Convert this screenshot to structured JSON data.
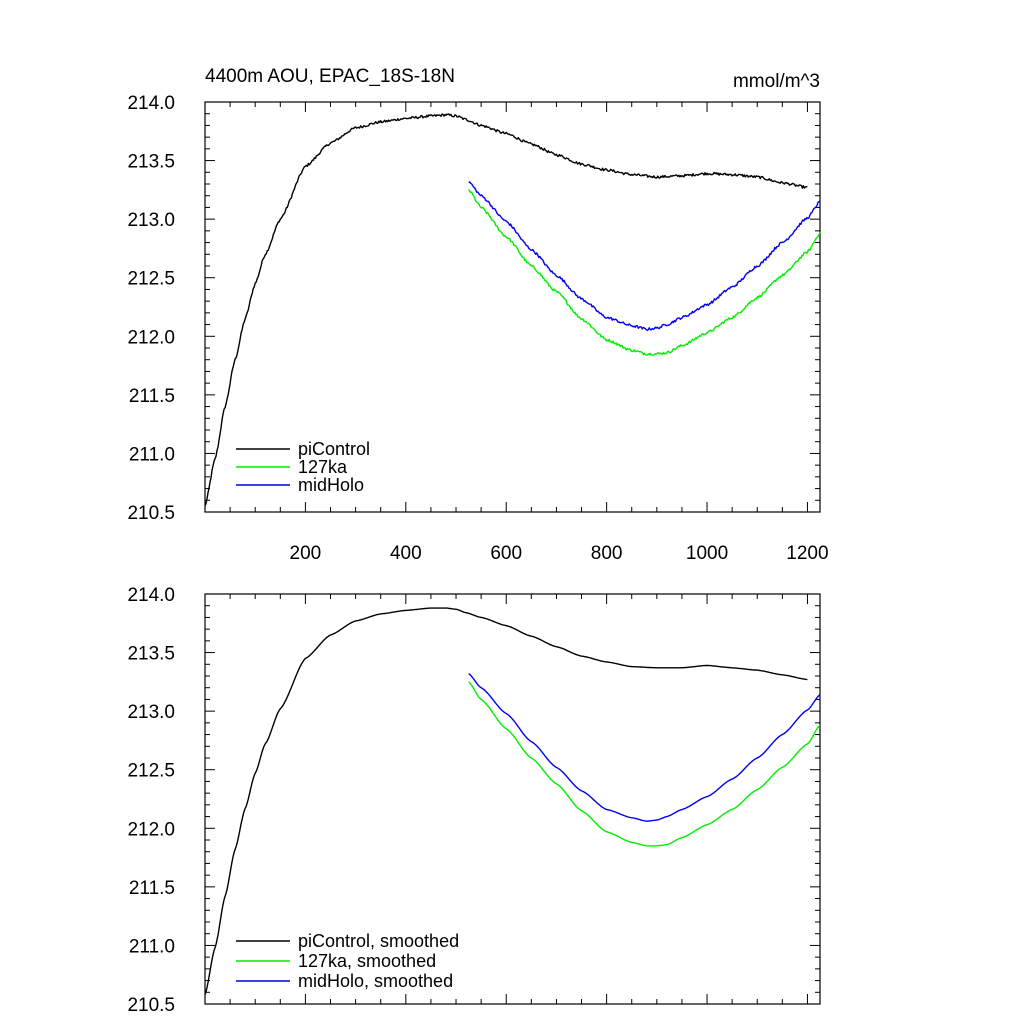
{
  "colors": {
    "piControl": "#000000",
    "127ka": "#00ee00",
    "midHolo": "#0000ee"
  },
  "chart_data": [
    {
      "type": "line",
      "title": "4400m AOU, EPAC_18S-18N",
      "units": "mmol/m^3",
      "xlim": [
        0,
        1225
      ],
      "ylim": [
        210.5,
        214.0
      ],
      "xticks": [
        "200",
        "400",
        "600",
        "800",
        "1000",
        "1200"
      ],
      "yticks": [
        "214.0",
        "213.5",
        "213.0",
        "212.5",
        "212.0",
        "211.5",
        "211.0",
        "210.5"
      ],
      "legend_position": "bottom-left",
      "noisy": true,
      "series": [
        {
          "name": "piControl",
          "color_key": "piControl",
          "x": [
            0,
            20,
            40,
            60,
            80,
            100,
            120,
            150,
            200,
            250,
            300,
            350,
            400,
            450,
            480,
            500,
            520,
            550,
            600,
            650,
            700,
            750,
            800,
            850,
            900,
            950,
            1000,
            1050,
            1100,
            1150,
            1200
          ],
          "y": [
            210.55,
            210.95,
            211.4,
            211.8,
            212.15,
            212.45,
            212.7,
            213.0,
            213.45,
            213.65,
            213.78,
            213.83,
            213.86,
            213.88,
            213.89,
            213.88,
            213.85,
            213.8,
            213.73,
            213.64,
            213.55,
            213.47,
            213.42,
            213.38,
            213.36,
            213.37,
            213.39,
            213.38,
            213.36,
            213.31,
            213.27
          ]
        },
        {
          "name": "127ka",
          "color_key": "127ka",
          "x": [
            525,
            550,
            600,
            650,
            700,
            750,
            800,
            850,
            880,
            900,
            920,
            950,
            1000,
            1050,
            1100,
            1150,
            1200,
            1225
          ],
          "y": [
            213.25,
            213.1,
            212.85,
            212.6,
            212.38,
            212.15,
            211.97,
            211.88,
            211.85,
            211.85,
            211.86,
            211.92,
            212.03,
            212.16,
            212.33,
            212.52,
            212.72,
            212.88
          ]
        },
        {
          "name": "midHolo",
          "color_key": "midHolo",
          "x": [
            525,
            550,
            600,
            650,
            700,
            750,
            800,
            850,
            880,
            900,
            920,
            950,
            1000,
            1050,
            1100,
            1150,
            1200,
            1225
          ],
          "y": [
            213.32,
            213.2,
            212.98,
            212.74,
            212.52,
            212.32,
            212.16,
            212.09,
            212.06,
            212.07,
            212.1,
            212.16,
            212.27,
            212.42,
            212.6,
            212.8,
            213.01,
            213.15
          ]
        }
      ]
    },
    {
      "type": "line",
      "title": "",
      "units": "",
      "xlim": [
        0,
        1225
      ],
      "ylim": [
        210.5,
        214.0
      ],
      "xticks": [],
      "yticks": [
        "214.0",
        "213.5",
        "213.0",
        "212.5",
        "212.0",
        "211.5",
        "211.0",
        "210.5"
      ],
      "legend_position": "bottom-left",
      "noisy": false,
      "series": [
        {
          "name": "piControl, smoothed",
          "color_key": "piControl",
          "x": [
            0,
            20,
            40,
            60,
            80,
            100,
            120,
            150,
            200,
            250,
            300,
            350,
            400,
            450,
            480,
            500,
            520,
            550,
            600,
            650,
            700,
            750,
            800,
            850,
            900,
            950,
            1000,
            1050,
            1100,
            1150,
            1200
          ],
          "y": [
            210.58,
            210.98,
            211.42,
            211.82,
            212.17,
            212.47,
            212.72,
            213.02,
            213.45,
            213.65,
            213.77,
            213.83,
            213.86,
            213.88,
            213.88,
            213.87,
            213.84,
            213.8,
            213.73,
            213.64,
            213.55,
            213.47,
            213.42,
            213.38,
            213.37,
            213.37,
            213.39,
            213.37,
            213.35,
            213.31,
            213.27
          ]
        },
        {
          "name": "127ka, smoothed",
          "color_key": "127ka",
          "x": [
            525,
            550,
            600,
            650,
            700,
            750,
            800,
            850,
            880,
            900,
            920,
            950,
            1000,
            1050,
            1100,
            1150,
            1200,
            1225
          ],
          "y": [
            213.25,
            213.1,
            212.85,
            212.6,
            212.38,
            212.15,
            211.97,
            211.88,
            211.85,
            211.85,
            211.86,
            211.92,
            212.03,
            212.16,
            212.33,
            212.52,
            212.72,
            212.88
          ]
        },
        {
          "name": "midHolo, smoothed",
          "color_key": "midHolo",
          "x": [
            525,
            550,
            600,
            650,
            700,
            750,
            800,
            850,
            880,
            900,
            920,
            950,
            1000,
            1050,
            1100,
            1150,
            1200,
            1225
          ],
          "y": [
            213.32,
            213.2,
            212.98,
            212.74,
            212.52,
            212.32,
            212.16,
            212.09,
            212.06,
            212.07,
            212.1,
            212.16,
            212.27,
            212.42,
            212.6,
            212.8,
            213.01,
            213.14
          ]
        }
      ]
    }
  ]
}
